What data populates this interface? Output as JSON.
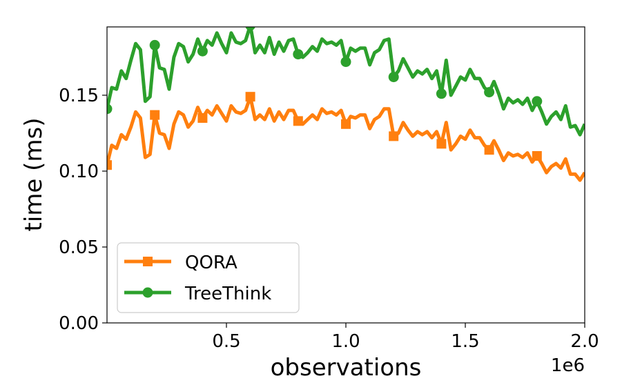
{
  "chart_data": {
    "type": "line",
    "title": "",
    "xlabel": "observations",
    "ylabel": "time (ms)",
    "x_offset_label": "1e6",
    "xlim": [
      0.0,
      2.0
    ],
    "ylim": [
      0.0,
      0.195
    ],
    "x_ticks": [
      0.5,
      1.0,
      1.5,
      2.0
    ],
    "x_tick_labels": [
      "0.5",
      "1.0",
      "1.5",
      "2.0"
    ],
    "y_ticks": [
      0.0,
      0.05,
      0.1,
      0.15
    ],
    "y_tick_labels": [
      "0.00",
      "0.05",
      "0.10",
      "0.15"
    ],
    "legend_position": "lower-left",
    "series": [
      {
        "name": "QORA",
        "color": "#ff7f0e",
        "marker": "square",
        "marker_x": [
          0.0,
          0.2,
          0.4,
          0.6,
          0.8,
          1.0,
          1.2,
          1.4,
          1.6,
          1.8
        ],
        "x": [
          0.0,
          0.02,
          0.04,
          0.06,
          0.08,
          0.1,
          0.12,
          0.14,
          0.16,
          0.18,
          0.2,
          0.22,
          0.24,
          0.26,
          0.28,
          0.3,
          0.32,
          0.34,
          0.36,
          0.38,
          0.4,
          0.42,
          0.44,
          0.46,
          0.48,
          0.5,
          0.52,
          0.54,
          0.56,
          0.58,
          0.6,
          0.62,
          0.64,
          0.66,
          0.68,
          0.7,
          0.72,
          0.74,
          0.76,
          0.78,
          0.8,
          0.82,
          0.84,
          0.86,
          0.88,
          0.9,
          0.92,
          0.94,
          0.96,
          0.98,
          1.0,
          1.02,
          1.04,
          1.06,
          1.08,
          1.1,
          1.12,
          1.14,
          1.16,
          1.18,
          1.2,
          1.22,
          1.24,
          1.26,
          1.28,
          1.3,
          1.32,
          1.34,
          1.36,
          1.38,
          1.4,
          1.42,
          1.44,
          1.46,
          1.48,
          1.5,
          1.52,
          1.54,
          1.56,
          1.58,
          1.6,
          1.62,
          1.64,
          1.66,
          1.68,
          1.7,
          1.72,
          1.74,
          1.76,
          1.78,
          1.8,
          1.82,
          1.84,
          1.86,
          1.88,
          1.9,
          1.92,
          1.94,
          1.96,
          1.98,
          2.0
        ],
        "y": [
          0.104,
          0.117,
          0.115,
          0.124,
          0.121,
          0.129,
          0.139,
          0.135,
          0.109,
          0.111,
          0.137,
          0.125,
          0.124,
          0.115,
          0.131,
          0.139,
          0.137,
          0.129,
          0.133,
          0.142,
          0.135,
          0.14,
          0.137,
          0.143,
          0.138,
          0.133,
          0.143,
          0.139,
          0.138,
          0.14,
          0.149,
          0.134,
          0.137,
          0.134,
          0.141,
          0.133,
          0.139,
          0.134,
          0.14,
          0.14,
          0.133,
          0.131,
          0.134,
          0.137,
          0.134,
          0.141,
          0.138,
          0.139,
          0.137,
          0.14,
          0.131,
          0.136,
          0.135,
          0.137,
          0.137,
          0.128,
          0.134,
          0.136,
          0.141,
          0.141,
          0.123,
          0.125,
          0.132,
          0.127,
          0.123,
          0.126,
          0.124,
          0.126,
          0.122,
          0.126,
          0.118,
          0.132,
          0.114,
          0.118,
          0.123,
          0.121,
          0.127,
          0.122,
          0.122,
          0.117,
          0.114,
          0.12,
          0.114,
          0.107,
          0.112,
          0.11,
          0.111,
          0.109,
          0.112,
          0.106,
          0.11,
          0.105,
          0.099,
          0.103,
          0.105,
          0.102,
          0.108,
          0.098,
          0.098,
          0.094,
          0.099
        ]
      },
      {
        "name": "TreeThink",
        "color": "#2ca02c",
        "marker": "circle",
        "marker_x": [
          0.0,
          0.2,
          0.4,
          0.6,
          0.8,
          1.0,
          1.2,
          1.4,
          1.6,
          1.8
        ],
        "x": [
          0.0,
          0.02,
          0.04,
          0.06,
          0.08,
          0.1,
          0.12,
          0.14,
          0.16,
          0.18,
          0.2,
          0.22,
          0.24,
          0.26,
          0.28,
          0.3,
          0.32,
          0.34,
          0.36,
          0.38,
          0.4,
          0.42,
          0.44,
          0.46,
          0.48,
          0.5,
          0.52,
          0.54,
          0.56,
          0.58,
          0.6,
          0.62,
          0.64,
          0.66,
          0.68,
          0.7,
          0.72,
          0.74,
          0.76,
          0.78,
          0.8,
          0.82,
          0.84,
          0.86,
          0.88,
          0.9,
          0.92,
          0.94,
          0.96,
          0.98,
          1.0,
          1.02,
          1.04,
          1.06,
          1.08,
          1.1,
          1.12,
          1.14,
          1.16,
          1.18,
          1.2,
          1.22,
          1.24,
          1.26,
          1.28,
          1.3,
          1.32,
          1.34,
          1.36,
          1.38,
          1.4,
          1.42,
          1.44,
          1.46,
          1.48,
          1.5,
          1.52,
          1.54,
          1.56,
          1.58,
          1.6,
          1.62,
          1.64,
          1.66,
          1.68,
          1.7,
          1.72,
          1.74,
          1.76,
          1.78,
          1.8,
          1.82,
          1.84,
          1.86,
          1.88,
          1.9,
          1.92,
          1.94,
          1.96,
          1.98,
          2.0
        ],
        "y": [
          0.141,
          0.155,
          0.154,
          0.166,
          0.161,
          0.173,
          0.184,
          0.18,
          0.146,
          0.149,
          0.183,
          0.168,
          0.167,
          0.154,
          0.175,
          0.184,
          0.182,
          0.172,
          0.177,
          0.187,
          0.179,
          0.186,
          0.183,
          0.191,
          0.184,
          0.178,
          0.191,
          0.185,
          0.184,
          0.186,
          0.196,
          0.178,
          0.183,
          0.178,
          0.188,
          0.177,
          0.185,
          0.179,
          0.186,
          0.187,
          0.177,
          0.175,
          0.178,
          0.182,
          0.179,
          0.187,
          0.184,
          0.185,
          0.183,
          0.186,
          0.172,
          0.181,
          0.179,
          0.181,
          0.181,
          0.17,
          0.178,
          0.18,
          0.186,
          0.187,
          0.162,
          0.166,
          0.174,
          0.168,
          0.162,
          0.166,
          0.164,
          0.167,
          0.161,
          0.166,
          0.151,
          0.173,
          0.15,
          0.156,
          0.162,
          0.16,
          0.167,
          0.161,
          0.161,
          0.155,
          0.152,
          0.159,
          0.151,
          0.141,
          0.148,
          0.145,
          0.147,
          0.144,
          0.148,
          0.14,
          0.146,
          0.139,
          0.131,
          0.136,
          0.139,
          0.134,
          0.143,
          0.129,
          0.13,
          0.124,
          0.131
        ]
      }
    ]
  }
}
